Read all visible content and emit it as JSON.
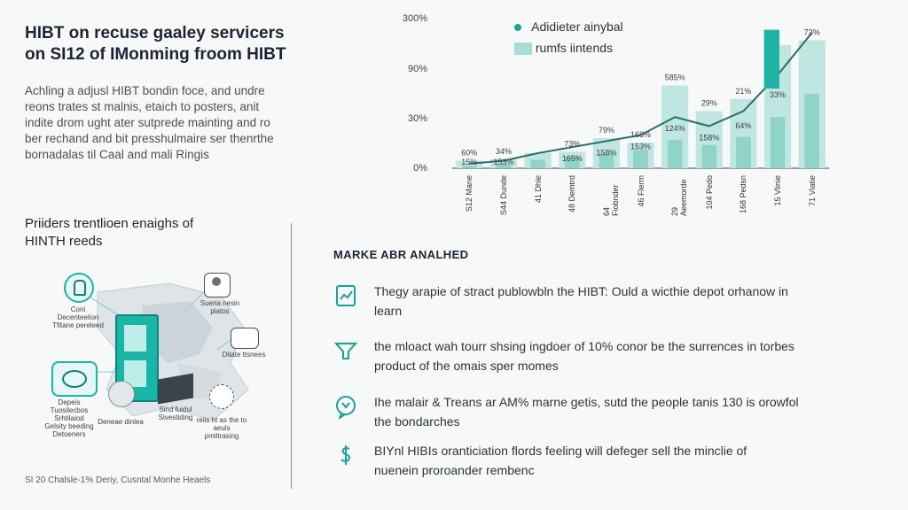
{
  "header": {
    "title_line1": "HIBT on recuse gaaley servicers",
    "title_line2": "on SI12 of IMonming froom HIBT"
  },
  "intro": [
    "Achling a adjusl HIBT bondin foce, and undre",
    "reons trates st malnis, etaich to posters, anit",
    "indite drom ught ater sutprede mainting and ro",
    "ber rechand and bit presshulmaire ser thenrthe",
    "bornadalas til Caal and mali Ringis"
  ],
  "providers": {
    "heading_line1": "Priiders trentlioen enaighs of",
    "heading_line2": "HINTH reeds"
  },
  "illustration_labels": {
    "top_left": "Coni Decenteelion Tfitane pereleed",
    "top_right": "Sueria nesin piatos",
    "right": "Ditate ttsnees",
    "bottom_left": "Depeis Tuosilecbos Srhtilaiod Gelsity beeding Detoeners",
    "bottom_mid1": "Deneae dinlea",
    "bottom_mid2": "Sind fuidul Sivestiding",
    "bottom_right": "reiis ht as the to aeuls pmiltrasing"
  },
  "footnote": "SI 20 Chalsle-1% Deriy, Cusntal Monhe Heaels",
  "market": {
    "heading": "MARKE ABR ANALHED",
    "items": [
      {
        "icon": "document-chart-icon",
        "line1": "Thegy arapie of stract publowbln the HIBT: Ould a wicthie depot orhanow in",
        "line2": "learn"
      },
      {
        "icon": "funnel-icon",
        "line1": "the mloact wah tourr shsing ingdoer of 10% conor be the surrences in torbes",
        "line2": "product of the omais sper momes"
      },
      {
        "icon": "chat-bubble-icon",
        "line1": "Ihe malair & Treans ar AM% marne getis, sutd the people tanis 130 is orowfol",
        "line2": "the bondarches"
      },
      {
        "icon": "dollar-hand-icon",
        "line1": "BIYnl HIBIs oranticiation flords feeling will defeger sell the minclie of",
        "line2": "nuenein proroander rembenc"
      }
    ]
  },
  "chart_data": {
    "type": "bar",
    "legend": [
      {
        "name": "Adidieter ainybal",
        "marker": "dot",
        "color": "#1aa89b"
      },
      {
        "name": "rumfs iintends",
        "marker": "block",
        "color": "#a8ddd6"
      }
    ],
    "y_ticks": [
      "300%",
      "90%",
      "30%",
      "0%"
    ],
    "categories": [
      "S12 Mane",
      "S44 Dunde",
      "41 Dhle",
      "48 Demtrd",
      "64 Fiobnder",
      "46 Flerm",
      "29 Aeemorde",
      "104 Pedo",
      "168 Pedsn",
      "15 Vlinie",
      "71 Viatie"
    ],
    "series": [
      {
        "name": "rumfs iintends",
        "values": [
          5,
          6,
          10,
          11,
          20,
          17,
          55,
          38,
          46,
          82,
          85
        ]
      },
      {
        "name": "Adidieter ainybal",
        "values": [
          3,
          5,
          10,
          14,
          18,
          22,
          34,
          28,
          38,
          62,
          90
        ]
      }
    ],
    "data_labels_top": [
      "60%",
      "34%",
      "",
      "73%",
      "79%",
      "168%",
      "585%",
      "29%",
      "21%",
      "",
      "73%"
    ],
    "data_labels_inner": [
      "15%",
      "153%",
      "",
      "165%",
      "158%",
      "153%",
      "124%",
      "158%",
      "",
      "",
      ""
    ],
    "extra_labels": [
      "64%",
      "33%"
    ]
  }
}
